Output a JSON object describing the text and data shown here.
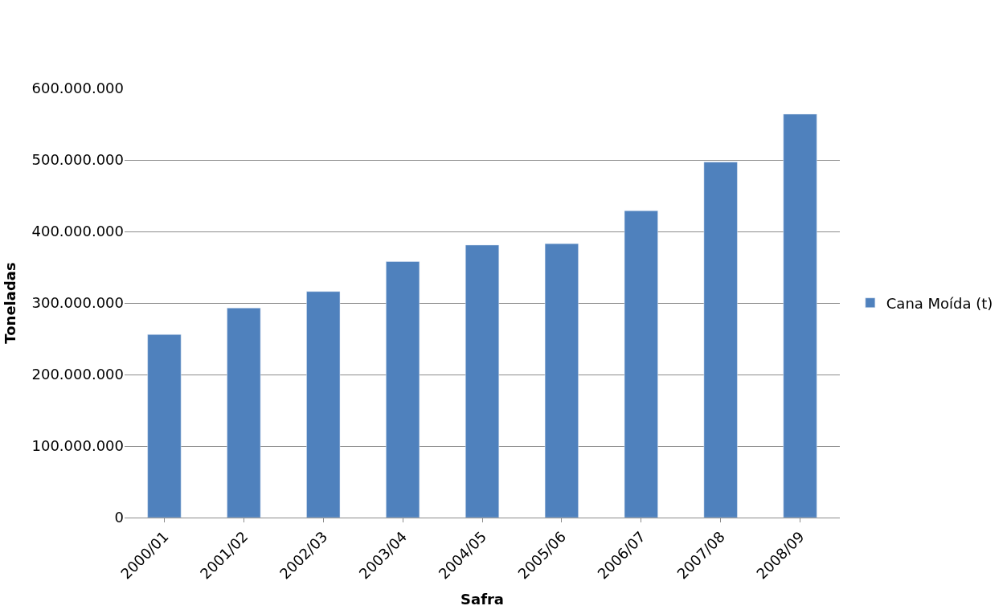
{
  "chart_data": {
    "type": "bar",
    "xlabel": "Safra",
    "ylabel": "Toneladas",
    "categories": [
      "2000/01",
      "2001/02",
      "2002/03",
      "2003/04",
      "2004/05",
      "2005/06",
      "2006/07",
      "2007/08",
      "2008/09"
    ],
    "series": [
      {
        "name": "Cana Moída (t)",
        "color": "#4f81bd",
        "values": [
          256000000,
          293000000,
          316000000,
          358000000,
          381000000,
          383000000,
          429000000,
          497000000,
          564000000
        ]
      }
    ],
    "ylim": [
      0,
      600000000
    ],
    "yticks": [
      {
        "value": 0,
        "label": "0"
      },
      {
        "value": 100000000,
        "label": "100.000.000"
      },
      {
        "value": 200000000,
        "label": "200.000.000"
      },
      {
        "value": 300000000,
        "label": "300.000.000"
      },
      {
        "value": 400000000,
        "label": "400.000.000"
      },
      {
        "value": 500000000,
        "label": "500.000.000"
      },
      {
        "value": 600000000,
        "label": "600.000.000"
      }
    ],
    "grid": "y",
    "legend": "right"
  }
}
